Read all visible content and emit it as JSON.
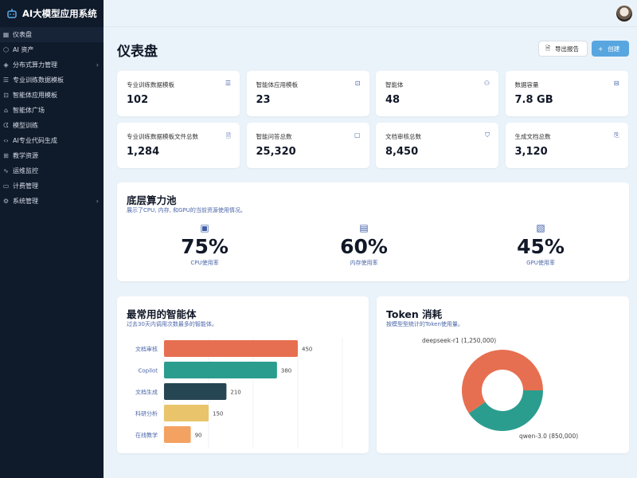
{
  "app": {
    "title": "AI大模型应用系统"
  },
  "sidebar": {
    "items": [
      {
        "label": "仪表盘",
        "icon": "grid-icon",
        "active": true
      },
      {
        "label": "AI 资产",
        "icon": "cube-icon"
      },
      {
        "label": "分布式算力管理",
        "icon": "layers-icon",
        "chevron": true
      },
      {
        "label": "专业训练数据模板",
        "icon": "database-icon"
      },
      {
        "label": "智能体应用模板",
        "icon": "bot-icon"
      },
      {
        "label": "智能体广场",
        "icon": "store-icon"
      },
      {
        "label": "模型训练",
        "icon": "brain-icon"
      },
      {
        "label": "AI专业代码生成",
        "icon": "code-icon"
      },
      {
        "label": "教学资源",
        "icon": "book-icon"
      },
      {
        "label": "运维监控",
        "icon": "activity-icon"
      },
      {
        "label": "计费管理",
        "icon": "credit-card-icon"
      },
      {
        "label": "系统管理",
        "icon": "gear-icon",
        "chevron": true
      }
    ]
  },
  "page": {
    "title": "仪表盘",
    "export_label": "导出报告",
    "create_label": "创建"
  },
  "stats": [
    {
      "label": "专业训练数据模板",
      "value": "102",
      "icon": "database-icon"
    },
    {
      "label": "智能体应用模板",
      "value": "23",
      "icon": "bot-icon"
    },
    {
      "label": "智能体",
      "value": "48",
      "icon": "users-icon"
    },
    {
      "label": "数据容量",
      "value": "7.8 GB",
      "icon": "hard-drive-icon"
    },
    {
      "label": "专业训练数据模板文件总数",
      "value": "1,284",
      "icon": "file-icon"
    },
    {
      "label": "智能问答总数",
      "value": "25,320",
      "icon": "message-icon"
    },
    {
      "label": "文档审核总数",
      "value": "8,450",
      "icon": "shield-check-icon"
    },
    {
      "label": "生成文档总数",
      "value": "3,120",
      "icon": "file-plus-icon"
    }
  ],
  "compute": {
    "title": "底层算力池",
    "subtitle": "展示了CPU, 内存, 和GPU的当前资源使用情况。",
    "items": [
      {
        "value": "75%",
        "label": "CPU使用率",
        "icon": "cpu-icon"
      },
      {
        "value": "60%",
        "label": "内存使用率",
        "icon": "memory-icon"
      },
      {
        "value": "45%",
        "label": "GPU使用率",
        "icon": "gpu-icon"
      }
    ]
  },
  "chart_data": [
    {
      "type": "bar",
      "orientation": "horizontal",
      "title": "最常用的智能体",
      "subtitle": "过去30天内调用次数最多的智能体。",
      "categories": [
        "文档审核",
        "Copilot",
        "文档生成",
        "科研分析",
        "在线教学"
      ],
      "values": [
        450,
        380,
        210,
        150,
        90
      ],
      "colors": [
        "#e76f51",
        "#2a9d8f",
        "#264653",
        "#e9c46a",
        "#f4a261"
      ],
      "xlim": [
        0,
        600
      ],
      "grid": true,
      "data_labels": true
    },
    {
      "type": "pie",
      "donut": true,
      "title": "Token 消耗",
      "subtitle": "按模型型统计的Token使用量。",
      "labels": [
        "deepseek-r1 (1,250,000)",
        "qwen-3.0 (850,000)"
      ],
      "categories": [
        "deepseek-r1",
        "qwen-3.0"
      ],
      "values": [
        1250000,
        850000
      ],
      "colors": [
        "#e76f51",
        "#2a9d8f"
      ]
    }
  ]
}
